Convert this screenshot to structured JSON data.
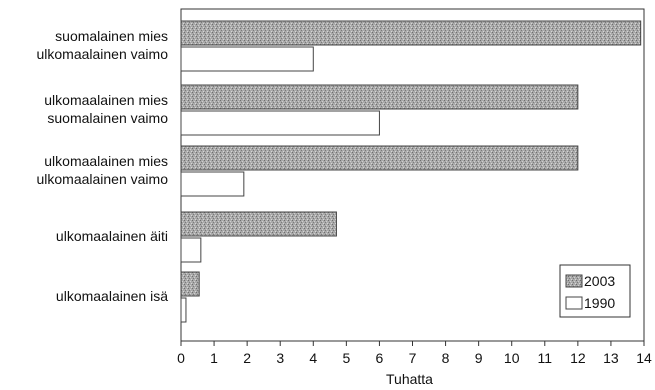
{
  "chart_data": {
    "type": "bar",
    "orientation": "horizontal",
    "title": "",
    "xlabel": "Tuhatta",
    "ylabel": "",
    "xlim": [
      0,
      14
    ],
    "xticks": [
      "0",
      "1",
      "2",
      "3",
      "4",
      "5",
      "6",
      "7",
      "8",
      "9",
      "10",
      "11",
      "12",
      "13",
      "14"
    ],
    "categories": [
      [
        "suomalainen mies",
        "ulkomaalainen vaimo"
      ],
      [
        "ulkomaalainen mies",
        "suomalainen vaimo"
      ],
      [
        "ulkomaalainen mies",
        "ulkomaalainen vaimo"
      ],
      [
        "ulkomaalainen äiti"
      ],
      [
        "ulkomaalainen isä"
      ]
    ],
    "series": [
      {
        "name": "2003",
        "values": [
          13.9,
          12.0,
          12.0,
          4.7,
          0.55
        ],
        "color": "#a8a8a8"
      },
      {
        "name": "1990",
        "values": [
          4.0,
          6.0,
          1.9,
          0.6,
          0.15
        ],
        "color": "#ffffff"
      }
    ],
    "legend": {
      "position": "bottom-right"
    },
    "grid": false
  }
}
